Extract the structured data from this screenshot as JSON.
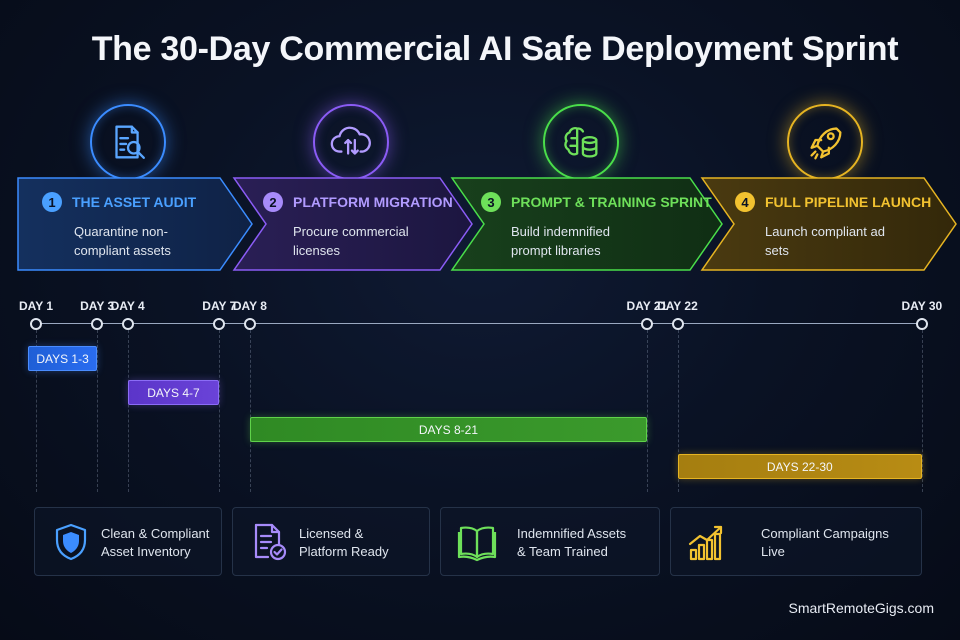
{
  "title": "The 30-Day Commercial AI Safe Deployment Sprint",
  "colors": {
    "blue": "#3b8cff",
    "purple": "#8b5cf6",
    "green": "#4ade4a",
    "gold": "#e6b422"
  },
  "phases": [
    {
      "number": "1",
      "title": "THE ASSET AUDIT",
      "desc": "Quarantine non-compliant assets",
      "icon": "document-search-icon",
      "color": "#4aa0ff"
    },
    {
      "number": "2",
      "title": "PLATFORM MIGRATION",
      "desc": "Procure commercial licenses",
      "icon": "cloud-transfer-icon",
      "color": "#a78bfa"
    },
    {
      "number": "3",
      "title": "PROMPT & TRAINING SPRINT",
      "desc": "Build indemnified prompt libraries",
      "icon": "brain-database-icon",
      "color": "#6ee05a"
    },
    {
      "number": "4",
      "title": "FULL PIPELINE LAUNCH",
      "desc": "Launch compliant ad sets",
      "icon": "rocket-icon",
      "color": "#f2c230"
    }
  ],
  "timeline": {
    "range": [
      1,
      30
    ],
    "ticks": [
      {
        "day": 1,
        "label": "DAY 1"
      },
      {
        "day": 3,
        "label": "DAY 3"
      },
      {
        "day": 4,
        "label": "DAY 4"
      },
      {
        "day": 7,
        "label": "DAY 7"
      },
      {
        "day": 8,
        "label": "DAY 8"
      },
      {
        "day": 21,
        "label": "DAY 21"
      },
      {
        "day": 22,
        "label": "DAY 22"
      },
      {
        "day": 30,
        "label": "DAY 30"
      }
    ],
    "bars": [
      {
        "label": "DAYS 1-3",
        "start": 1,
        "end": 3
      },
      {
        "label": "DAYS 4-7",
        "start": 4,
        "end": 7
      },
      {
        "label": "DAYS 8-21",
        "start": 8,
        "end": 21
      },
      {
        "label": "DAYS 22-30",
        "start": 22,
        "end": 30
      }
    ]
  },
  "outcomes": [
    {
      "text1": "Clean & Compliant",
      "text2": "Asset Inventory",
      "icon": "shield-icon"
    },
    {
      "text1": "Licensed &",
      "text2": "Platform Ready",
      "icon": "document-check-icon"
    },
    {
      "text1": "Indemnified Assets",
      "text2": "& Team Trained",
      "icon": "open-book-icon"
    },
    {
      "text1": "Compliant Campaigns",
      "text2": "Live",
      "icon": "growth-chart-icon"
    }
  ],
  "footer": "SmartRemoteGigs.com"
}
